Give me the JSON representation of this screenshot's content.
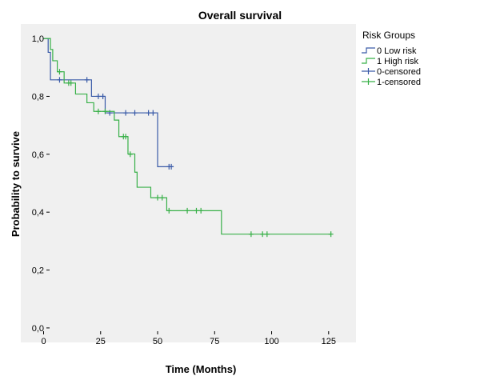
{
  "colors": {
    "plot_background": "#f0f0f0",
    "low_risk": "#3a5ba8",
    "high_risk": "#38b048",
    "axis": "#000000"
  },
  "chart_data": {
    "type": "line",
    "step": true,
    "title": "Overall survival",
    "xlabel": "Time (Months)",
    "ylabel": "Probability to survive",
    "xlim": [
      -10,
      137
    ],
    "ylim": [
      -0.05,
      1.05
    ],
    "x_ticks": [
      0,
      25,
      50,
      75,
      100,
      125
    ],
    "x_tick_labels": [
      "0",
      "25",
      "50",
      "75",
      "100",
      "125"
    ],
    "y_ticks": [
      0.0,
      0.2,
      0.4,
      0.6,
      0.8,
      1.0
    ],
    "y_tick_labels": [
      "0,0",
      "0,2",
      "0,4",
      "0,6",
      "0,8",
      "1,0"
    ],
    "grid": false,
    "legend": {
      "title": "Risk Groups",
      "position": "right",
      "entries": [
        {
          "label": "0 Low risk",
          "kind": "line",
          "color": "#3a5ba8"
        },
        {
          "label": "1 High risk",
          "kind": "line",
          "color": "#38b048"
        },
        {
          "label": "0-censored",
          "kind": "censor",
          "color": "#3a5ba8"
        },
        {
          "label": "1-censored",
          "kind": "censor",
          "color": "#38b048"
        }
      ]
    },
    "series": [
      {
        "name": "0 Low risk",
        "color": "#3a5ba8",
        "steps": [
          [
            0,
            1.0
          ],
          [
            2,
            0.952
          ],
          [
            3,
            0.857
          ],
          [
            21,
            0.8
          ],
          [
            27,
            0.743
          ],
          [
            50,
            0.557
          ],
          [
            57,
            0.557
          ]
        ],
        "censored": [
          [
            7,
            0.857
          ],
          [
            19,
            0.857
          ],
          [
            24,
            0.8
          ],
          [
            26,
            0.8
          ],
          [
            29,
            0.743
          ],
          [
            36,
            0.743
          ],
          [
            40,
            0.743
          ],
          [
            46,
            0.743
          ],
          [
            48,
            0.743
          ],
          [
            55,
            0.557
          ],
          [
            56,
            0.557
          ]
        ]
      },
      {
        "name": "1 High risk",
        "color": "#38b048",
        "steps": [
          [
            0,
            1.0
          ],
          [
            3,
            0.962
          ],
          [
            4,
            0.923
          ],
          [
            6,
            0.885
          ],
          [
            9,
            0.846
          ],
          [
            14,
            0.808
          ],
          [
            19,
            0.778
          ],
          [
            22,
            0.748
          ],
          [
            31,
            0.718
          ],
          [
            33,
            0.661
          ],
          [
            37,
            0.601
          ],
          [
            40,
            0.538
          ],
          [
            41,
            0.486
          ],
          [
            47,
            0.45
          ],
          [
            54,
            0.405
          ],
          [
            78,
            0.324
          ],
          [
            126,
            0.324
          ]
        ],
        "censored": [
          [
            7,
            0.885
          ],
          [
            11,
            0.846
          ],
          [
            12,
            0.846
          ],
          [
            24,
            0.748
          ],
          [
            27,
            0.748
          ],
          [
            35,
            0.661
          ],
          [
            36,
            0.661
          ],
          [
            38,
            0.6
          ],
          [
            50,
            0.45
          ],
          [
            52,
            0.45
          ],
          [
            55,
            0.405
          ],
          [
            63,
            0.405
          ],
          [
            67,
            0.405
          ],
          [
            69,
            0.405
          ],
          [
            91,
            0.324
          ],
          [
            96,
            0.324
          ],
          [
            98,
            0.324
          ],
          [
            126,
            0.324
          ]
        ]
      }
    ]
  }
}
